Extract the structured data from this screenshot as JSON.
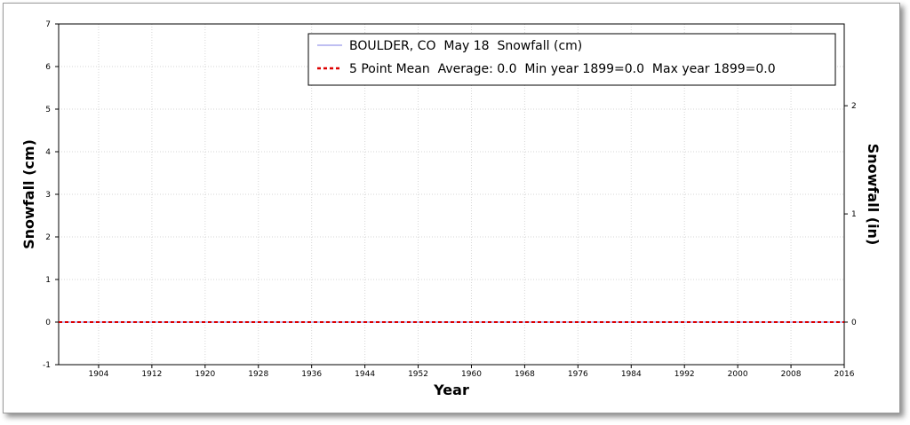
{
  "chart_data": {
    "type": "line",
    "xlabel": "Year",
    "ylabel": "Snowfall (cm)",
    "y2label": "Snowfall (in)",
    "xlim": [
      1898,
      2016
    ],
    "ylim": [
      -1,
      7
    ],
    "y2lim": [
      -0.3937,
      2.7559
    ],
    "x_ticks": [
      1904,
      1912,
      1920,
      1928,
      1936,
      1944,
      1952,
      1960,
      1968,
      1976,
      1984,
      1992,
      2000,
      2008,
      2016
    ],
    "y_ticks": [
      -1,
      0,
      1,
      2,
      3,
      4,
      5,
      6,
      7
    ],
    "y2_ticks": [
      0,
      1,
      2
    ],
    "grid": true,
    "legend_position": "top-right",
    "series": [
      {
        "name": "BOULDER, CO  May 18  Snowfall (cm)",
        "color": "#aaaaee",
        "style": "solid",
        "x": [
          1898,
          2016
        ],
        "y": [
          0,
          0
        ]
      },
      {
        "name": "5 Point Mean  Average: 0.0  Min year 1899=0.0  Max year 1899=0.0",
        "color": "#dd0000",
        "style": "dashed",
        "x": [
          1898,
          2016
        ],
        "y": [
          0,
          0
        ]
      }
    ]
  }
}
